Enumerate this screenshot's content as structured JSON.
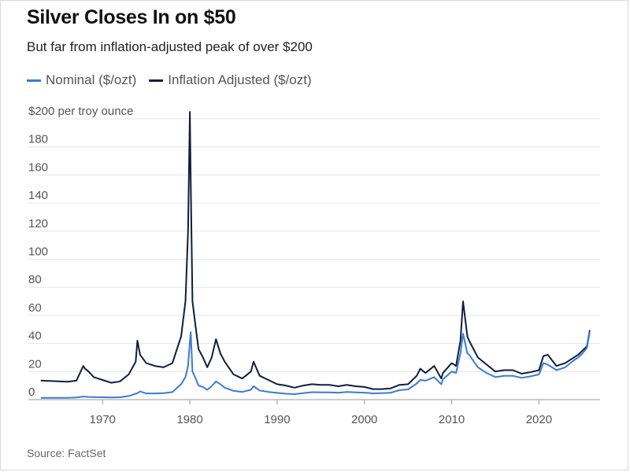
{
  "chart_data": {
    "type": "line",
    "title": "Silver Closes In on $50",
    "subtitle": "But far from inflation-adjusted peak of over $200",
    "ylabel": "$200 per troy ounce",
    "source": "Source: FactSet",
    "xlim": [
      1961.5,
      2027
    ],
    "ylim": [
      0,
      200
    ],
    "grid": true,
    "legend_position": "top-left",
    "y_ticks": [
      0,
      20,
      40,
      60,
      80,
      100,
      120,
      140,
      160,
      180,
      200
    ],
    "y_tick_labels": [
      "0",
      "20",
      "40",
      "60",
      "80",
      "100",
      "120",
      "140",
      "160",
      "180",
      "$200 per troy ounce"
    ],
    "x_ticks": [
      1970,
      1980,
      1990,
      2000,
      2010,
      2020
    ],
    "x_tick_labels": [
      "1970",
      "1980",
      "1990",
      "2000",
      "2010",
      "2020"
    ],
    "series": [
      {
        "name": "Nominal ($/ozt)",
        "color": "#3a7bd5",
        "x": [
          1963,
          1964,
          1965,
          1966,
          1967,
          1967.8,
          1968,
          1968.4,
          1969,
          1970,
          1971,
          1972,
          1973,
          1973.8,
          1974,
          1974.3,
          1975,
          1976,
          1977,
          1978,
          1979,
          1979.5,
          1979.8,
          1980,
          1980.1,
          1980.3,
          1980.6,
          1981,
          1981.5,
          1982,
          1982.5,
          1983,
          1983.5,
          1984,
          1985,
          1986,
          1987,
          1987.3,
          1988,
          1989,
          1990,
          1991,
          1992,
          1993,
          1994,
          1995,
          1996,
          1997,
          1998,
          1999,
          2000,
          2001,
          2002,
          2003,
          2004,
          2005,
          2006,
          2006.4,
          2007,
          2008,
          2008.8,
          2009,
          2010,
          2010.5,
          2011,
          2011.3,
          2011.8,
          2012,
          2013,
          2014,
          2015,
          2016,
          2017,
          2018,
          2019,
          2020,
          2020.5,
          2021,
          2022,
          2023,
          2024,
          2024.5,
          2025,
          2025.5,
          2025.8
        ],
        "values": [
          1.3,
          1.3,
          1.3,
          1.3,
          1.5,
          2.2,
          2.1,
          1.9,
          1.8,
          1.7,
          1.5,
          1.7,
          2.6,
          4.2,
          4.6,
          5.8,
          4.4,
          4.4,
          4.6,
          5.4,
          11,
          16,
          24,
          41,
          48,
          20,
          16,
          10,
          9,
          7,
          9.5,
          13,
          11,
          8.5,
          6.3,
          5.5,
          7,
          9.5,
          6.5,
          5.5,
          4.8,
          4.2,
          3.9,
          4.6,
          5.3,
          5.2,
          5.2,
          4.9,
          5.5,
          5.2,
          5,
          4.4,
          4.6,
          4.9,
          6.7,
          7.3,
          11.5,
          14,
          13.5,
          16,
          11,
          14.5,
          20,
          19,
          33,
          47,
          33,
          32,
          23,
          19,
          16,
          17,
          17,
          15.5,
          16.5,
          18,
          26,
          25,
          21,
          23,
          28,
          30,
          33,
          37,
          48
        ]
      },
      {
        "name": "Inflation Adjusted ($/ozt)",
        "color": "#0f1e3d",
        "x": [
          1963,
          1964,
          1965,
          1966,
          1967,
          1967.8,
          1968,
          1968.4,
          1969,
          1970,
          1971,
          1972,
          1973,
          1973.8,
          1974,
          1974.3,
          1975,
          1976,
          1977,
          1978,
          1979,
          1979.5,
          1979.8,
          1980,
          1980.1,
          1980.3,
          1980.6,
          1981,
          1981.5,
          1982,
          1982.5,
          1983,
          1983.5,
          1984,
          1985,
          1986,
          1987,
          1987.3,
          1988,
          1989,
          1990,
          1991,
          1992,
          1993,
          1994,
          1995,
          1996,
          1997,
          1998,
          1999,
          2000,
          2001,
          2002,
          2003,
          2004,
          2005,
          2006,
          2006.4,
          2007,
          2008,
          2008.8,
          2009,
          2010,
          2010.5,
          2011,
          2011.3,
          2011.8,
          2012,
          2013,
          2014,
          2015,
          2016,
          2017,
          2018,
          2019,
          2020,
          2020.5,
          2021,
          2022,
          2023,
          2024,
          2024.5,
          2025,
          2025.5,
          2025.8
        ],
        "values": [
          13.5,
          13.3,
          13,
          12.8,
          13.5,
          24,
          22,
          20,
          16,
          14,
          12,
          13,
          18,
          27,
          42,
          32,
          26,
          24,
          23,
          26,
          45,
          70,
          120,
          205,
          155,
          70,
          55,
          36,
          30,
          23,
          30,
          43,
          33,
          27,
          18,
          15,
          20,
          27,
          17,
          14,
          11,
          10,
          8.5,
          10,
          11,
          10.5,
          10.5,
          9.5,
          10.5,
          9.5,
          9,
          7.5,
          7.5,
          8,
          10.5,
          11,
          17,
          22,
          19,
          24,
          15,
          19,
          26,
          24,
          42,
          70,
          45,
          42,
          30,
          25,
          20,
          21,
          21,
          18.5,
          19.5,
          21,
          31,
          32,
          24,
          26,
          30,
          32,
          35,
          38,
          49
        ]
      }
    ]
  }
}
